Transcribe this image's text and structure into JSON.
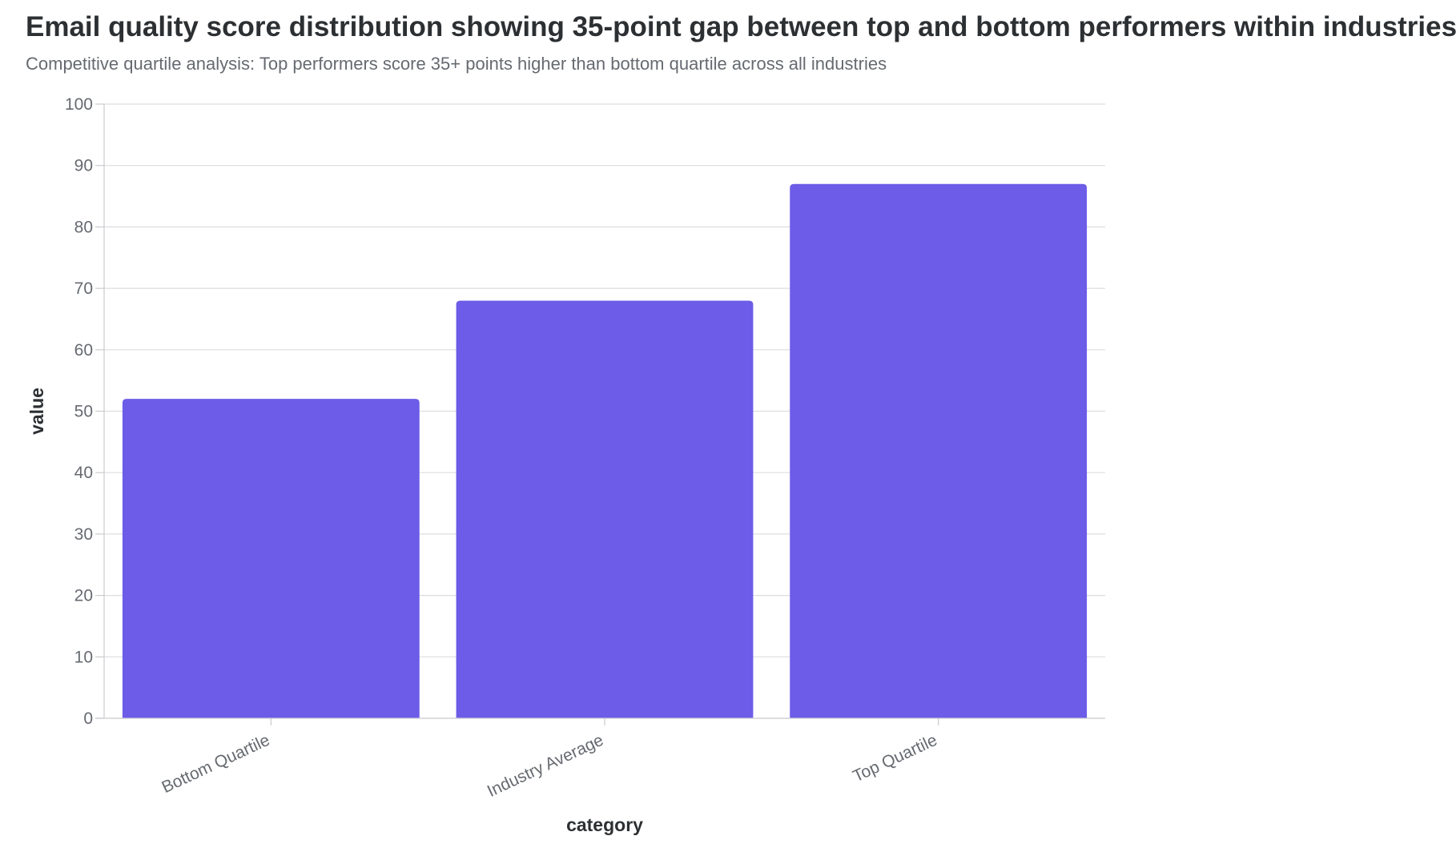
{
  "chart_data": {
    "type": "bar",
    "title": "Email quality score distribution showing 35-point gap between top and bottom performers within industries",
    "subtitle": "Competitive quartile analysis: Top performers score 35+ points higher than bottom quartile across all industries",
    "xlabel": "category",
    "ylabel": "value",
    "categories": [
      "Bottom Quartile",
      "Industry Average",
      "Top Quartile"
    ],
    "values": [
      52,
      68,
      87
    ],
    "ylim": [
      0,
      100
    ],
    "yticks": [
      0,
      10,
      20,
      30,
      40,
      50,
      60,
      70,
      80,
      90,
      100
    ],
    "grid": true,
    "legend": "none",
    "bar_color": "#6c5ce7",
    "grid_color": "#dcdde0",
    "axis_color": "#c9cbcf"
  }
}
